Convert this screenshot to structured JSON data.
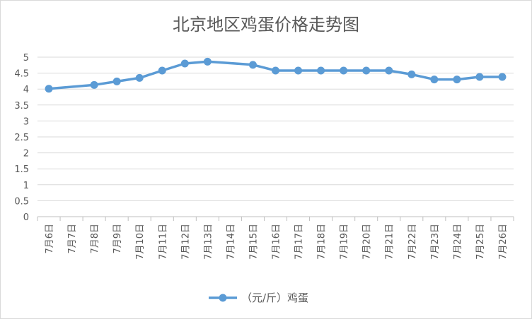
{
  "chart_data": {
    "type": "line",
    "title": "北京地区鸡蛋价格走势图",
    "xlabel": "",
    "ylabel": "",
    "ylim": [
      0,
      5
    ],
    "yticks": [
      "0",
      "0.5",
      "1",
      "1.5",
      "2",
      "2.5",
      "3",
      "3.5",
      "4",
      "4.5",
      "5"
    ],
    "categories": [
      "7月6日",
      "7月7日",
      "7月8日",
      "7月9日",
      "7月10日",
      "7月11日",
      "7月12日",
      "7月13日",
      "7月14日",
      "7月15日",
      "7月16日",
      "7月17日",
      "7月18日",
      "7月19日",
      "7月20日",
      "7月21日",
      "7月22日",
      "7月23日",
      "7月24日",
      "7月25日",
      "7月26日"
    ],
    "grid": true,
    "legend_position": "bottom",
    "series": [
      {
        "name": "（元/斤）鸡蛋",
        "color": "#5b9bd5",
        "values": [
          4.01,
          null,
          4.13,
          4.24,
          4.35,
          4.58,
          4.8,
          4.86,
          null,
          4.76,
          4.58,
          4.58,
          4.58,
          4.58,
          4.58,
          4.58,
          4.46,
          4.3,
          4.3,
          4.38,
          4.38
        ]
      }
    ]
  }
}
